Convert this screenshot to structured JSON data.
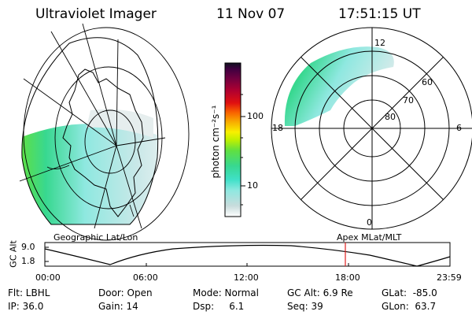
{
  "header": {
    "instrument": "Ultraviolet Imager",
    "date": "11 Nov 07",
    "time": "17:51:15 UT"
  },
  "colorbar": {
    "unit_label": "photon cm⁻²s⁻¹",
    "ticks": [
      "100",
      "10"
    ],
    "colors": [
      "#ffffff",
      "#c8dcdc",
      "#8fe8e0",
      "#40e0c8",
      "#38d890",
      "#60e040",
      "#c0f000",
      "#f8f000",
      "#f8a800",
      "#f86000",
      "#e01010",
      "#b00030",
      "#700040",
      "#400040",
      "#101020"
    ]
  },
  "geo_map": {
    "label": "Geographic Lat/Lon"
  },
  "polar_map": {
    "label": "Apex  MLat/MLT",
    "mlt_labels": [
      "12",
      "18",
      "6",
      "0"
    ],
    "lat_labels": [
      "60",
      "70",
      "80"
    ]
  },
  "altitude_strip": {
    "ylabel": "GC Alt",
    "yticks": [
      "9.0",
      "1.8"
    ],
    "xticks": [
      "00:00",
      "06:00",
      "12:00",
      "18:00",
      "23:59"
    ],
    "marker_color": "#e02020"
  },
  "status": {
    "filter": "Flt: LBHL",
    "ip": "IP: 36.0",
    "door": "Door: Open",
    "gain": "Gain: 14",
    "mode": "Mode: Normal",
    "dsp": "Dsp:     6.1",
    "gc_alt": "GC Alt: 6.9 Re",
    "seq": "Seq: 39",
    "glat": "GLat:  -85.0",
    "glon": "GLon:  63.7"
  }
}
